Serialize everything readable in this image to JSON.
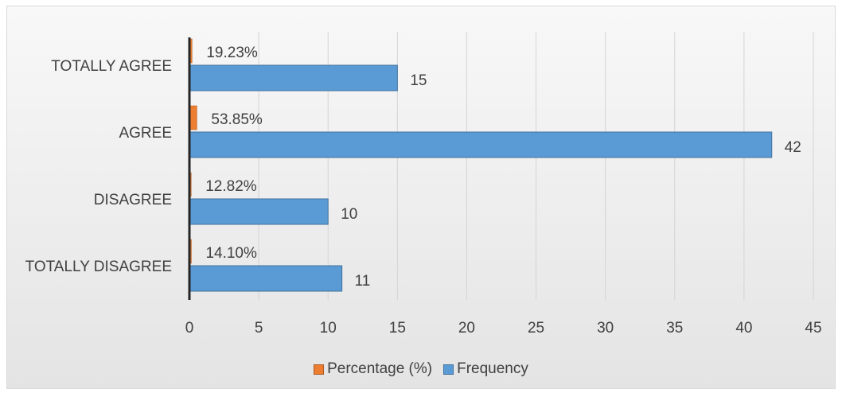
{
  "chart_data": {
    "type": "bar",
    "orientation": "horizontal",
    "categories": [
      "TOTALLY AGREE",
      "AGREE",
      "DISAGREE",
      "TOTALLY DISAGREE"
    ],
    "series": [
      {
        "name": "Percentage (%)",
        "values": [
          0.1923,
          0.5385,
          0.1282,
          0.141
        ],
        "labels": [
          "19.23%",
          "53.85%",
          "12.82%",
          "14.10%"
        ],
        "color": "#ed7d31"
      },
      {
        "name": "Frequency",
        "values": [
          15,
          42,
          10,
          11
        ],
        "labels": [
          "15",
          "42",
          "10",
          "11"
        ],
        "color": "#5b9bd5"
      }
    ],
    "xticks": [
      "0",
      "5",
      "10",
      "15",
      "20",
      "25",
      "30",
      "35",
      "40",
      "45"
    ],
    "xlim": [
      0,
      45
    ],
    "grid": true,
    "legend_position": "bottom"
  },
  "legend": {
    "percentage_label": "Percentage (%)",
    "frequency_label": "Frequency"
  }
}
